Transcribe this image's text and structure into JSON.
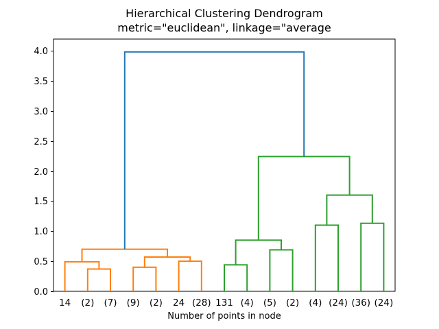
{
  "chart_data": {
    "type": "dendrogram",
    "title": "Hierarchical Clustering Dendrogram",
    "subtitle": "metric=\"euclidean\", linkage=\"average",
    "xlabel": "Number of points in node",
    "ylabel": "",
    "ylim": [
      0.0,
      4.19
    ],
    "grid": false,
    "ytick_labels": [
      "0.0",
      "0.5",
      "1.0",
      "1.5",
      "2.0",
      "2.5",
      "3.0",
      "3.5",
      "4.0"
    ],
    "leaf_labels": [
      "14",
      "(2)",
      "(7)",
      "(9)",
      "(2)",
      "24",
      "(28)",
      "131",
      "(4)",
      "(5)",
      "(2)",
      "(4)",
      "(24)",
      "(36)",
      "(24)"
    ],
    "leaf_clusters": [
      "orange",
      "orange",
      "orange",
      "orange",
      "orange",
      "orange",
      "orange",
      "green",
      "green",
      "green",
      "green",
      "green",
      "green",
      "green",
      "green"
    ],
    "links": [
      {
        "id": "N1",
        "left": "L1",
        "right": "L2",
        "height": 0.37,
        "color": "orange"
      },
      {
        "id": "N2",
        "left": "L0",
        "right": "N1",
        "height": 0.49,
        "color": "orange"
      },
      {
        "id": "N3",
        "left": "L3",
        "right": "L4",
        "height": 0.4,
        "color": "orange"
      },
      {
        "id": "N4",
        "left": "L5",
        "right": "L6",
        "height": 0.5,
        "color": "orange"
      },
      {
        "id": "N5",
        "left": "N3",
        "right": "N4",
        "height": 0.57,
        "color": "orange"
      },
      {
        "id": "N6",
        "left": "N2",
        "right": "N5",
        "height": 0.7,
        "color": "orange"
      },
      {
        "id": "N7",
        "left": "L7",
        "right": "L8",
        "height": 0.44,
        "color": "green"
      },
      {
        "id": "N8",
        "left": "L9",
        "right": "L10",
        "height": 0.69,
        "color": "green"
      },
      {
        "id": "N9",
        "left": "N7",
        "right": "N8",
        "height": 0.85,
        "color": "green"
      },
      {
        "id": "N10",
        "left": "L11",
        "right": "L12",
        "height": 1.1,
        "color": "green"
      },
      {
        "id": "N11",
        "left": "L13",
        "right": "L14",
        "height": 1.13,
        "color": "green"
      },
      {
        "id": "N12",
        "left": "N10",
        "right": "N11",
        "height": 1.6,
        "color": "green"
      },
      {
        "id": "N13",
        "left": "N9",
        "right": "N12",
        "height": 2.24,
        "color": "green"
      },
      {
        "id": "N14",
        "left": "N6",
        "right": "N13",
        "height": 3.98,
        "color": "blue"
      }
    ],
    "colors": {
      "blue": "#1f77b4",
      "orange": "#ff7f0e",
      "green": "#2ca02c",
      "axis": "#000000"
    }
  }
}
